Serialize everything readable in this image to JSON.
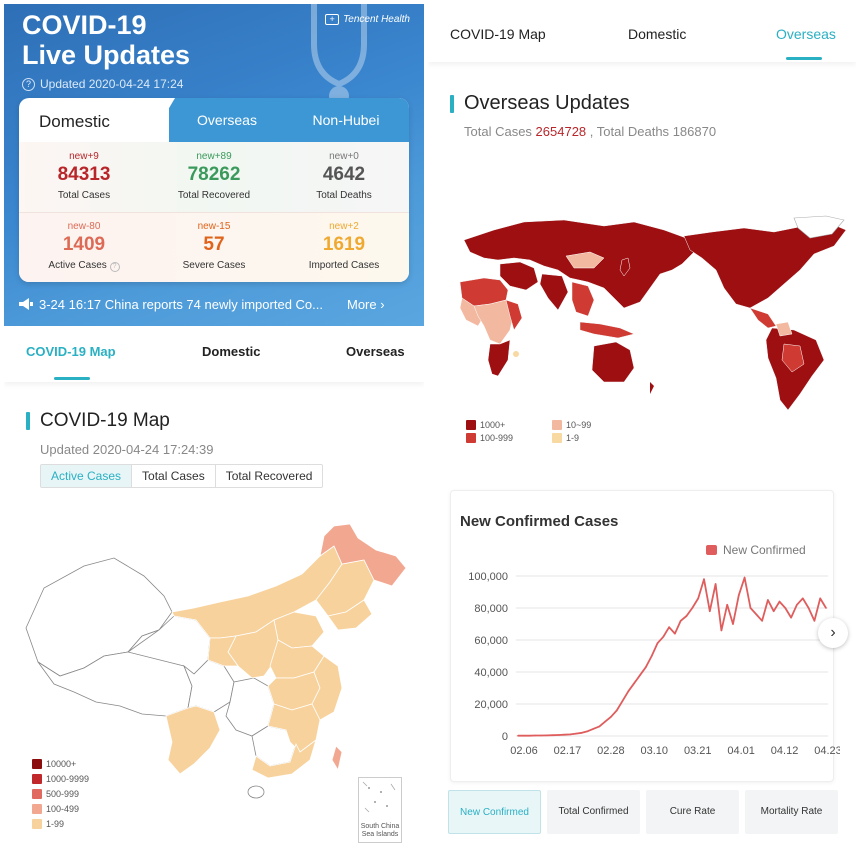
{
  "left": {
    "hero": {
      "title_line1": "COVID-19",
      "title_line2": "Live Updates",
      "updated": "Updated 2020-04-24 17:24",
      "brand": "Tencent Health"
    },
    "tabs": {
      "domestic": "Domestic",
      "overseas": "Overseas",
      "non_hubei": "Non-Hubei"
    },
    "stats": [
      {
        "new": "new+9",
        "value": "84313",
        "label": "Total Cases",
        "color": "#b8262a"
      },
      {
        "new": "new+89",
        "value": "78262",
        "label": "Total Recovered",
        "color": "#3a9a5b"
      },
      {
        "new": "new+0",
        "value": "4642",
        "label": "Total Deaths",
        "color": "#555555"
      },
      {
        "new": "new-80",
        "value": "1409",
        "label": "Active Cases",
        "color": "#dd6a55"
      },
      {
        "new": "new-15",
        "value": "57",
        "label": "Severe Cases",
        "color": "#e0631b"
      },
      {
        "new": "new+2",
        "value": "1619",
        "label": "Imported Cases",
        "color": "#f0a930"
      }
    ],
    "news": {
      "text": "3-24 16:17 China reports 74 newly imported Co...",
      "more": "More"
    },
    "nav": {
      "map": "COVID-19 Map",
      "domestic": "Domestic",
      "overseas": "Overseas"
    },
    "map_section": {
      "title": "COVID-19 Map",
      "updated": "Updated 2020-04-24 17:24:39",
      "segments": [
        "Active Cases",
        "Total Cases",
        "Total Recovered"
      ],
      "legend": [
        {
          "label": "10000+",
          "color": "#8b0d0d"
        },
        {
          "label": "1000-9999",
          "color": "#c0282b"
        },
        {
          "label": "500-999",
          "color": "#e06a5f"
        },
        {
          "label": "100-499",
          "color": "#f2a791"
        },
        {
          "label": "1-99",
          "color": "#f8d29c"
        }
      ],
      "inset_label": "South China Sea Islands"
    }
  },
  "right": {
    "nav": {
      "map": "COVID-19 Map",
      "domestic": "Domestic",
      "overseas": "Overseas"
    },
    "title": "Overseas Updates",
    "total_cases_label": "Total Cases",
    "total_cases": "2654728",
    "total_deaths_label": ", Total Deaths",
    "total_deaths": "186870",
    "legend": [
      {
        "label": "1000+",
        "color": "#9e0f12"
      },
      {
        "label": "10~99",
        "color": "#f3b9a0"
      },
      {
        "label": "100-999",
        "color": "#cf3a32"
      },
      {
        "label": "1-9",
        "color": "#f8d9a2"
      }
    ],
    "chart_title": "New Confirmed Cases",
    "chart_legend": "New Confirmed",
    "tabs": [
      "New Confirmed",
      "Total Confirmed",
      "Cure Rate",
      "Mortality Rate"
    ],
    "next_icon": "chevron-right-icon"
  },
  "chart_data": {
    "type": "line",
    "title": "New Confirmed Cases",
    "series": [
      {
        "name": "New Confirmed",
        "color": "#df5d5d",
        "values": [
          200,
          200,
          200,
          300,
          300,
          400,
          500,
          600,
          800,
          1000,
          1500,
          2000,
          3000,
          4500,
          6000,
          9000,
          12000,
          16000,
          22000,
          28000,
          33000,
          38000,
          43000,
          50000,
          58000,
          62000,
          68000,
          64000,
          72000,
          75000,
          80000,
          86000,
          98000,
          78000,
          95000,
          66000,
          82000,
          70000,
          88000,
          99000,
          80000,
          76000,
          72000,
          85000,
          78000,
          84000,
          80000,
          74000,
          82000,
          86000,
          80000,
          72000,
          86000,
          80000
        ]
      }
    ],
    "x_start": "2020-02-01",
    "x_end": "2020-04-23",
    "xticks": [
      "02.06",
      "02.17",
      "02.28",
      "03.10",
      "03.21",
      "04.01",
      "04.12",
      "04.23"
    ],
    "yticks": [
      "100,000",
      "80,000",
      "60,000",
      "40,000",
      "20,000",
      "0"
    ],
    "ylim": [
      0,
      100000
    ]
  }
}
